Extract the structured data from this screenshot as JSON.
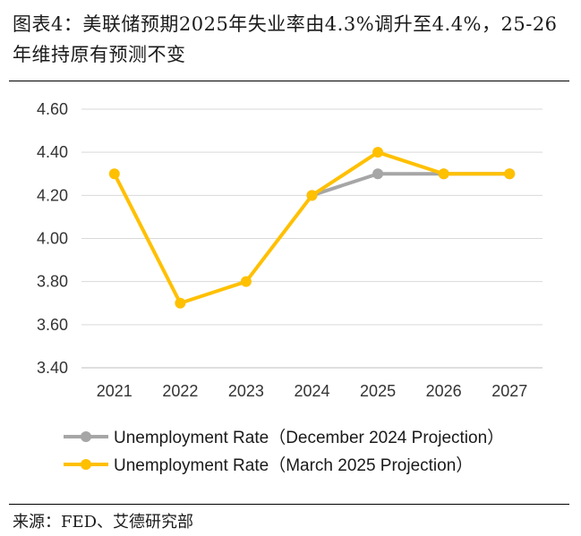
{
  "figure": {
    "title": "图表4：美联储预期2025年失业率由4.3%调升至4.4%，25-26年维持原有预测不变",
    "source": "来源：FED、艾德研究部"
  },
  "colors": {
    "grid": "#d9d9d9",
    "axis": "#bfbfbf"
  },
  "chart_data": {
    "type": "line",
    "categories": [
      "2021",
      "2022",
      "2023",
      "2024",
      "2025",
      "2026",
      "2027"
    ],
    "ylim": [
      3.4,
      4.6
    ],
    "yticks": [
      "3.40",
      "3.60",
      "3.80",
      "4.00",
      "4.20",
      "4.40",
      "4.60"
    ],
    "grid": true,
    "legend_position": "bottom",
    "series": [
      {
        "name": "Unemployment Rate（December 2024 Projection）",
        "color": "#a6a6a6",
        "values": [
          null,
          null,
          null,
          4.2,
          4.3,
          4.3,
          4.3
        ]
      },
      {
        "name": "Unemployment Rate（March 2025 Projection）",
        "color": "#ffc000",
        "values": [
          4.3,
          3.7,
          3.8,
          4.2,
          4.4,
          4.3,
          4.3
        ]
      }
    ]
  }
}
